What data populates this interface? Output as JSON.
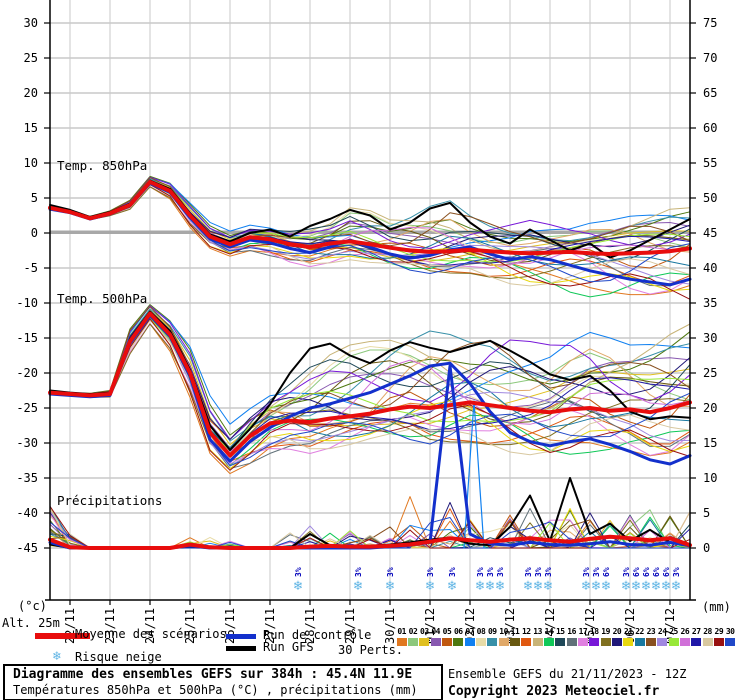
{
  "chart_data": {
    "type": "line",
    "title": "Diagramme des ensembles GEFS sur 384h : 45.4N 11.9E",
    "subtitle": "Températures 850hPa et 500hPa (°C) , précipitations (mm)",
    "run_info": "Ensemble GEFS du 21/11/2023 - 12Z",
    "copyright": "Copyright 2023 Meteociel.fr",
    "alt_label": "Alt. 25m",
    "x_dates": [
      "22/11",
      "23/11",
      "24/11",
      "25/11",
      "26/11",
      "27/11",
      "28/11",
      "29/11",
      "30/11",
      "01/12",
      "02/12",
      "03/12",
      "04/12",
      "05/12",
      "06/12",
      "07/12"
    ],
    "x_step_hours": 12,
    "left_axis": {
      "unit": "(°c)",
      "ticks": [
        30,
        25,
        20,
        15,
        10,
        5,
        0,
        -5,
        -10,
        -15,
        -20,
        -25,
        -30,
        -35,
        -40,
        -45
      ]
    },
    "right_axis": {
      "unit": "(mm)",
      "ticks": [
        75,
        70,
        65,
        60,
        55,
        50,
        45,
        40,
        35,
        30,
        25,
        20,
        15,
        10,
        5,
        0
      ]
    },
    "legend": {
      "mean": "Moyenne des scénarios",
      "control": "Run de contrôle",
      "gfs": "Run GFS",
      "perts": "30 Perts.",
      "snow": "Risque neige"
    },
    "colors": {
      "mean": "#e80d0d",
      "control": "#1330cc",
      "gfs": "#000000",
      "grid": "#c9c9c9",
      "zero_line": "#a8a8a8",
      "snow": "#5fb4e4",
      "snow_label": "#0000bb"
    },
    "pert_numbers": [
      "01",
      "02",
      "03",
      "04",
      "05",
      "06",
      "07",
      "08",
      "09",
      "10",
      "11",
      "12",
      "13",
      "14",
      "15",
      "16",
      "17",
      "18",
      "19",
      "20",
      "21",
      "22",
      "23",
      "24",
      "25",
      "26",
      "27",
      "28",
      "29",
      "30"
    ],
    "pert_colors": [
      "#e07820",
      "#8cc87c",
      "#e0c020",
      "#8858b0",
      "#c05810",
      "#4e7810",
      "#1080f0",
      "#e8dca8",
      "#3890a8",
      "#e0a868",
      "#685810",
      "#e05810",
      "#c8b478",
      "#10c858",
      "#1e4858",
      "#607078",
      "#e080e0",
      "#7818d8",
      "#807020",
      "#201878",
      "#e8d810",
      "#1878a0",
      "#885020",
      "#a088e0",
      "#98e838",
      "#d070d8",
      "#2018a8",
      "#d8c8a0",
      "#981010",
      "#2048c8"
    ],
    "panels": [
      {
        "label": "Temp. 850hPa",
        "axis": "left",
        "series": {
          "mean": [
            3.6,
            3.0,
            2.1,
            2.8,
            4.0,
            7.3,
            6.0,
            2.5,
            -0.5,
            -1.6,
            -0.6,
            -0.9,
            -1.6,
            -2.0,
            -1.5,
            -1.2,
            -1.6,
            -2.1,
            -2.5,
            -2.7,
            -2.6,
            -2.4,
            -2.6,
            -2.8,
            -2.9,
            -2.8,
            -2.7,
            -2.9,
            -3.0,
            -2.9,
            -2.8,
            -2.6,
            -2.2
          ],
          "control": [
            3.4,
            2.9,
            2.0,
            2.7,
            3.9,
            7.1,
            5.8,
            2.2,
            -0.8,
            -2.0,
            -1.0,
            -1.4,
            -2.2,
            -2.8,
            -2.0,
            -1.0,
            -2.0,
            -3.0,
            -3.6,
            -3.2,
            -2.4,
            -2.0,
            -3.0,
            -3.8,
            -3.4,
            -3.8,
            -4.6,
            -5.4,
            -6.0,
            -6.6,
            -7.0,
            -7.4,
            -6.6
          ],
          "gfs": [
            4.0,
            3.3,
            2.3,
            3.0,
            4.2,
            7.5,
            6.3,
            2.8,
            -0.2,
            -1.2,
            0.0,
            0.5,
            -0.5,
            1.0,
            2.0,
            3.3,
            2.5,
            0.5,
            1.5,
            3.5,
            4.3,
            1.5,
            -0.5,
            -1.5,
            0.5,
            -1.0,
            -2.5,
            -1.5,
            -3.5,
            -2.5,
            -1.0,
            0.5,
            2.0
          ]
        },
        "envelope": {
          "min": [
            3.0,
            2.4,
            1.5,
            2.2,
            3.2,
            6.5,
            4.8,
            0.8,
            -2.2,
            -3.4,
            -2.8,
            -3.4,
            -4.2,
            -4.8,
            -4.4,
            -4.0,
            -4.8,
            -5.6,
            -6.2,
            -6.6,
            -6.4,
            -6.2,
            -6.8,
            -7.4,
            -7.8,
            -8.2,
            -8.8,
            -9.4,
            -9.8,
            -10.2,
            -10.4,
            -10.4,
            -10.0
          ],
          "max": [
            4.2,
            3.7,
            2.8,
            3.4,
            4.8,
            8.1,
            7.2,
            4.4,
            1.6,
            0.4,
            1.4,
            1.2,
            0.6,
            0.8,
            1.4,
            3.6,
            3.2,
            2.0,
            2.6,
            3.8,
            4.6,
            2.8,
            1.8,
            1.4,
            1.8,
            1.2,
            0.8,
            1.4,
            1.8,
            2.4,
            2.8,
            3.4,
            3.6
          ]
        }
      },
      {
        "label": "Temp. 500hPa",
        "axis": "left",
        "series": {
          "mean": [
            -22.8,
            -23.0,
            -23.2,
            -23.0,
            -15.5,
            -11.5,
            -14.5,
            -20.0,
            -28.5,
            -31.8,
            -29.0,
            -27.2,
            -26.8,
            -27.0,
            -26.5,
            -26.2,
            -25.8,
            -25.2,
            -24.8,
            -25.0,
            -24.6,
            -24.2,
            -24.6,
            -25.0,
            -25.4,
            -25.6,
            -25.2,
            -25.0,
            -25.4,
            -25.2,
            -25.6,
            -25.0,
            -24.2
          ],
          "control": [
            -23.0,
            -23.2,
            -23.4,
            -23.2,
            -15.8,
            -11.8,
            -14.8,
            -20.5,
            -29.5,
            -32.6,
            -29.8,
            -27.8,
            -26.2,
            -25.0,
            -24.4,
            -23.6,
            -22.8,
            -21.6,
            -20.4,
            -19.0,
            -18.6,
            -21.5,
            -25.5,
            -28.5,
            -29.8,
            -30.4,
            -29.8,
            -29.4,
            -30.2,
            -31.2,
            -32.4,
            -33.0,
            -31.8
          ],
          "gfs": [
            -22.5,
            -22.8,
            -23.0,
            -22.8,
            -15.2,
            -11.2,
            -14.0,
            -19.5,
            -27.5,
            -31.0,
            -28.0,
            -24.5,
            -20.0,
            -16.5,
            -15.8,
            -17.5,
            -18.6,
            -16.8,
            -15.6,
            -16.4,
            -17.0,
            -16.2,
            -15.4,
            -16.8,
            -18.4,
            -20.2,
            -21.0,
            -20.4,
            -22.5,
            -25.5,
            -26.6,
            -26.2,
            -26.4
          ]
        },
        "envelope": {
          "min": [
            -23.5,
            -23.8,
            -24.0,
            -23.8,
            -17.8,
            -13.2,
            -17.0,
            -23.5,
            -31.5,
            -34.5,
            -33.5,
            -31.8,
            -31.0,
            -31.5,
            -31.0,
            -30.5,
            -30.2,
            -30.6,
            -31.0,
            -31.5,
            -31.0,
            -30.6,
            -31.0,
            -31.5,
            -32.0,
            -32.5,
            -32.0,
            -31.6,
            -32.0,
            -32.5,
            -33.5,
            -33.6,
            -32.5
          ],
          "max": [
            -22.0,
            -22.2,
            -22.4,
            -22.2,
            -13.4,
            -10.2,
            -12.4,
            -16.0,
            -23.0,
            -27.0,
            -24.5,
            -22.0,
            -20.5,
            -18.5,
            -17.0,
            -16.0,
            -15.5,
            -15.0,
            -14.5,
            -14.0,
            -14.5,
            -15.0,
            -14.2,
            -14.6,
            -15.5,
            -16.0,
            -15.0,
            -14.2,
            -15.0,
            -16.0,
            -15.5,
            -14.5,
            -13.0
          ]
        }
      },
      {
        "label": "Précipitations",
        "axis": "right",
        "series": {
          "mean": [
            1.2,
            0.1,
            0,
            0,
            0,
            0,
            0,
            0.5,
            0.1,
            0,
            0,
            0,
            0,
            0.2,
            0.3,
            0.2,
            0.2,
            0.3,
            0.5,
            0.9,
            1.4,
            1.1,
            0.9,
            1.2,
            1.4,
            1.1,
            0.9,
            1.3,
            1.6,
            1.4,
            1.1,
            1.4,
            0.4
          ],
          "control": [
            0.8,
            0,
            0,
            0,
            0,
            0,
            0,
            0.3,
            0,
            0,
            0,
            0,
            0,
            0,
            0,
            0,
            0,
            0.2,
            0.4,
            0.8,
            26.0,
            2.0,
            0.6,
            0.4,
            0.8,
            0.5,
            0.4,
            0.6,
            0.9,
            0.5,
            0.4,
            0.8,
            0.3
          ],
          "gfs": [
            0.5,
            0,
            0,
            0,
            0,
            0,
            0,
            0.2,
            0,
            0,
            0,
            0,
            0,
            2.0,
            0.4,
            0,
            0.3,
            0.5,
            0.8,
            1.2,
            1.5,
            0.6,
            0.4,
            3.0,
            7.5,
            1.0,
            10.0,
            2.0,
            3.5,
            1.0,
            2.6,
            0.8,
            0.3
          ]
        },
        "spike_zones": [
          {
            "from": 0,
            "to": 0.5,
            "max": 6
          },
          {
            "from": 3.5,
            "to": 4.5,
            "max": 1.8
          },
          {
            "from": 6,
            "to": 8.5,
            "max": 3.5
          },
          {
            "from": 9,
            "to": 16,
            "max": 8
          }
        ],
        "special_spikes": [
          {
            "member": 7,
            "day": 10.6,
            "mm": 21
          }
        ]
      }
    ],
    "snow_markers": [
      {
        "day": 6.2,
        "label": "3%"
      },
      {
        "day": 7.7,
        "label": "3%"
      },
      {
        "day": 8.5,
        "label": "3%"
      },
      {
        "day": 9.5,
        "label": "3%"
      },
      {
        "day": 10.05,
        "label": "3%"
      },
      {
        "day": 10.75,
        "label": "3%"
      },
      {
        "day": 11.0,
        "label": "3%"
      },
      {
        "day": 11.25,
        "label": "3%"
      },
      {
        "day": 11.95,
        "label": "3%"
      },
      {
        "day": 12.2,
        "label": "3%"
      },
      {
        "day": 12.45,
        "label": "3%"
      },
      {
        "day": 13.4,
        "label": "3%"
      },
      {
        "day": 13.65,
        "label": "3%"
      },
      {
        "day": 13.9,
        "label": "6%"
      },
      {
        "day": 14.4,
        "label": "3%"
      },
      {
        "day": 14.65,
        "label": "6%"
      },
      {
        "day": 14.9,
        "label": "6%"
      },
      {
        "day": 15.15,
        "label": "6%"
      },
      {
        "day": 15.4,
        "label": "6%"
      },
      {
        "day": 15.65,
        "label": "3%"
      }
    ]
  }
}
